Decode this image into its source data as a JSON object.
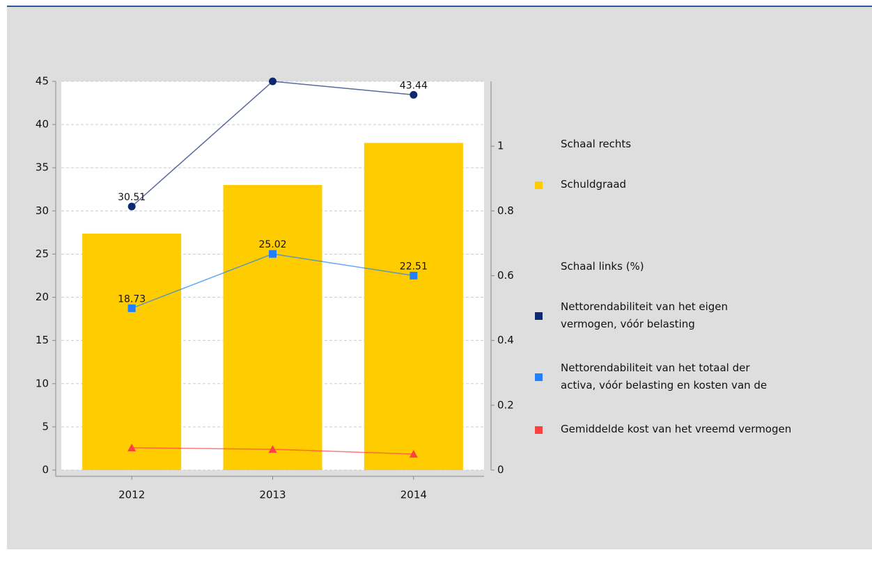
{
  "chart_data": {
    "type": "bar_line",
    "categories": [
      "2012",
      "2013",
      "2014"
    ],
    "ylim": [
      0,
      45
    ],
    "yticks": [
      0,
      5,
      10,
      15,
      20,
      25,
      30,
      35,
      40,
      45
    ],
    "y2lim": [
      0,
      1.2
    ],
    "y2ticks": [
      0,
      0.2,
      0.4,
      0.6,
      0.8,
      1
    ],
    "grid": true,
    "legend_titles": {
      "y2": "Schaal rechts",
      "y": "Schaal links (%)"
    },
    "series": [
      {
        "name": "Schuldgraad",
        "type": "bar",
        "axis": "y2",
        "color": "#ffcc00",
        "values": [
          0.73,
          0.88,
          1.01
        ]
      },
      {
        "name": "Nettorendabiliteit van het eigen\nvermogen, vóór belasting",
        "type": "line",
        "marker": "circle",
        "color": "#0d2a70",
        "values": [
          30.51,
          45,
          43.44
        ],
        "value_labels": [
          "30.51",
          null,
          "43.44"
        ]
      },
      {
        "name": "Nettorendabiliteit van het totaal der\nactiva, vóór belasting en kosten van de",
        "type": "line",
        "marker": "square",
        "color": "#2080ff",
        "values": [
          18.73,
          25.02,
          22.51
        ],
        "value_labels": [
          "18.73",
          "25.02",
          "22.51"
        ]
      },
      {
        "name": "Gemiddelde kost van het vreemd vermogen",
        "type": "line",
        "marker": "triangle",
        "color": "#ff4040",
        "values": [
          2.58,
          2.4,
          1.85
        ]
      }
    ]
  }
}
